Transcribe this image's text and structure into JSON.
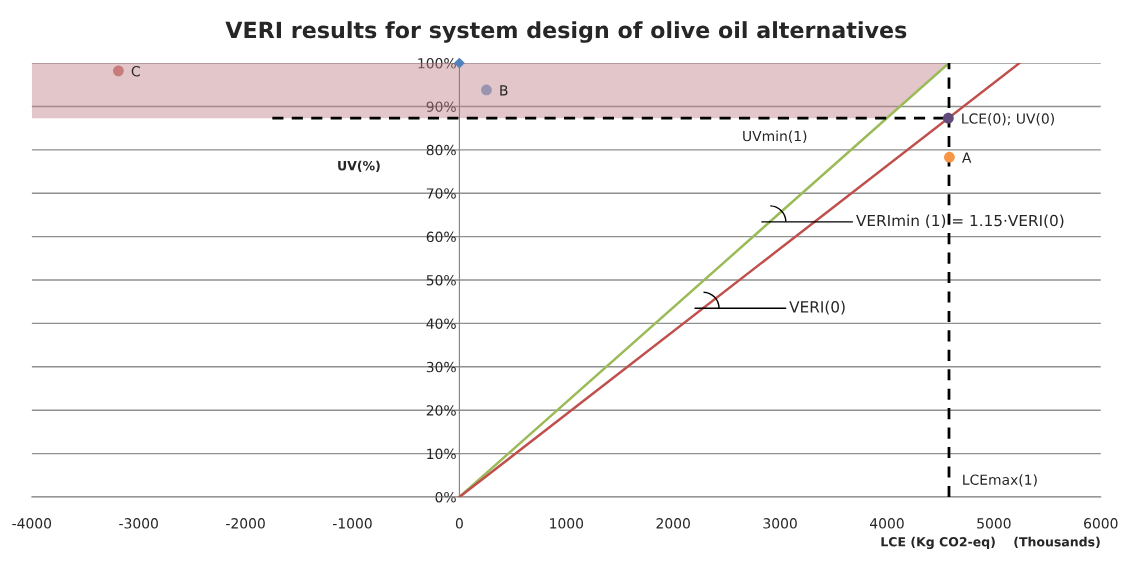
{
  "chart_data": {
    "type": "scatter",
    "title": "VERI results for system design of olive oil alternatives",
    "xlabel": "LCE (Kg CO2-eq)    (Thousands)",
    "ylabel": "UV(%)",
    "xlim": [
      -4000,
      6000
    ],
    "xticks": [
      -4000,
      -3000,
      -2000,
      -1000,
      0,
      1000,
      2000,
      3000,
      4000,
      5000,
      6000
    ],
    "ylim": [
      0,
      100
    ],
    "yticks": [
      {
        "value": 0,
        "label": "0%"
      },
      {
        "value": 10,
        "label": "10%"
      },
      {
        "value": 20,
        "label": "20%"
      },
      {
        "value": 30,
        "label": "30%"
      },
      {
        "value": 40,
        "label": "40%"
      },
      {
        "value": 50,
        "label": "50%"
      },
      {
        "value": 60,
        "label": "60%"
      },
      {
        "value": 70,
        "label": "70%"
      },
      {
        "value": 80,
        "label": "80%"
      },
      {
        "value": 90,
        "label": "90%"
      },
      {
        "value": 100,
        "label": "100%"
      }
    ],
    "grid": "y",
    "bands": [
      {
        "axis": "y",
        "from": 87.3,
        "to": 100,
        "color": "#c0808a"
      }
    ],
    "series": [
      {
        "type": "line",
        "color": "#9bbb59",
        "marker": "none",
        "line_style": "solid",
        "x": [
          0,
          4580
        ],
        "values": [
          0,
          100
        ]
      },
      {
        "type": "line",
        "color": "#c0504d",
        "marker": "none",
        "line_style": "solid",
        "x": [
          0,
          5240
        ],
        "values": [
          0,
          100
        ]
      },
      {
        "type": "line",
        "color": "#000000",
        "marker": "none",
        "line_style": "dashed",
        "x": [
          4580,
          4580
        ],
        "values": [
          0,
          100
        ]
      },
      {
        "type": "line",
        "color": "#000000",
        "marker": "none",
        "line_style": "dashed",
        "x": [
          -1750,
          4580
        ],
        "values": [
          87.3,
          87.3
        ]
      },
      {
        "color": "#4f81bd",
        "marker": "diamond",
        "x": [
          0
        ],
        "values": [
          100
        ]
      },
      {
        "name": "C",
        "color": "#c87b7b",
        "marker": "circle",
        "x": [
          -3190
        ],
        "values": [
          98.2
        ]
      },
      {
        "name": "B",
        "color": "#9a94b0",
        "marker": "circle",
        "x": [
          253
        ],
        "values": [
          93.8
        ]
      },
      {
        "name": "LCE(0); UV(0)",
        "color": "#604a7b",
        "marker": "circle",
        "x": [
          4574
        ],
        "values": [
          87.3
        ]
      },
      {
        "name": "A",
        "color": "#f79646",
        "marker": "circle",
        "x": [
          4584
        ],
        "values": [
          78.3
        ]
      }
    ],
    "annotations": [
      "UVmin(1)",
      {
        "text": "VERImin (1) = 1.15·VERI(0)",
        "x": 2904,
        "y": 63.4
      },
      {
        "text": "VERI(0)",
        "x": 2279,
        "y": 43.5
      },
      "LCEmax(1)"
    ]
  }
}
